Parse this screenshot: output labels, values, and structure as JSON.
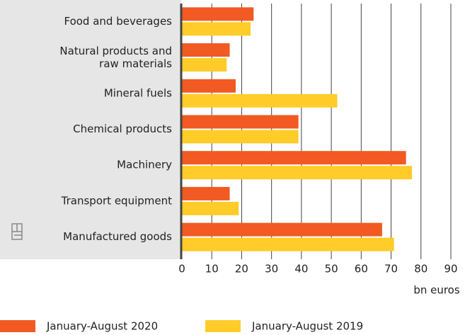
{
  "chart_data": {
    "type": "hbar",
    "categories": [
      "Food and beverages",
      "Natural products and\nraw materials",
      "Mineral fuels",
      "Chemical products",
      "Machinery",
      "Transport equipment",
      "Manufactured goods"
    ],
    "series": [
      {
        "name": "January-August 2020",
        "color": "#f15a22",
        "values": [
          24,
          16,
          18,
          39,
          75,
          16,
          67
        ]
      },
      {
        "name": "January-August 2019",
        "color": "#ffcc29",
        "values": [
          23,
          15,
          52,
          39,
          77,
          19,
          71
        ]
      }
    ],
    "xlim": [
      0,
      90
    ],
    "xticks": [
      0,
      10,
      20,
      30,
      40,
      50,
      60,
      70,
      80,
      90
    ],
    "xlabel": "bn euros",
    "grid": true
  }
}
